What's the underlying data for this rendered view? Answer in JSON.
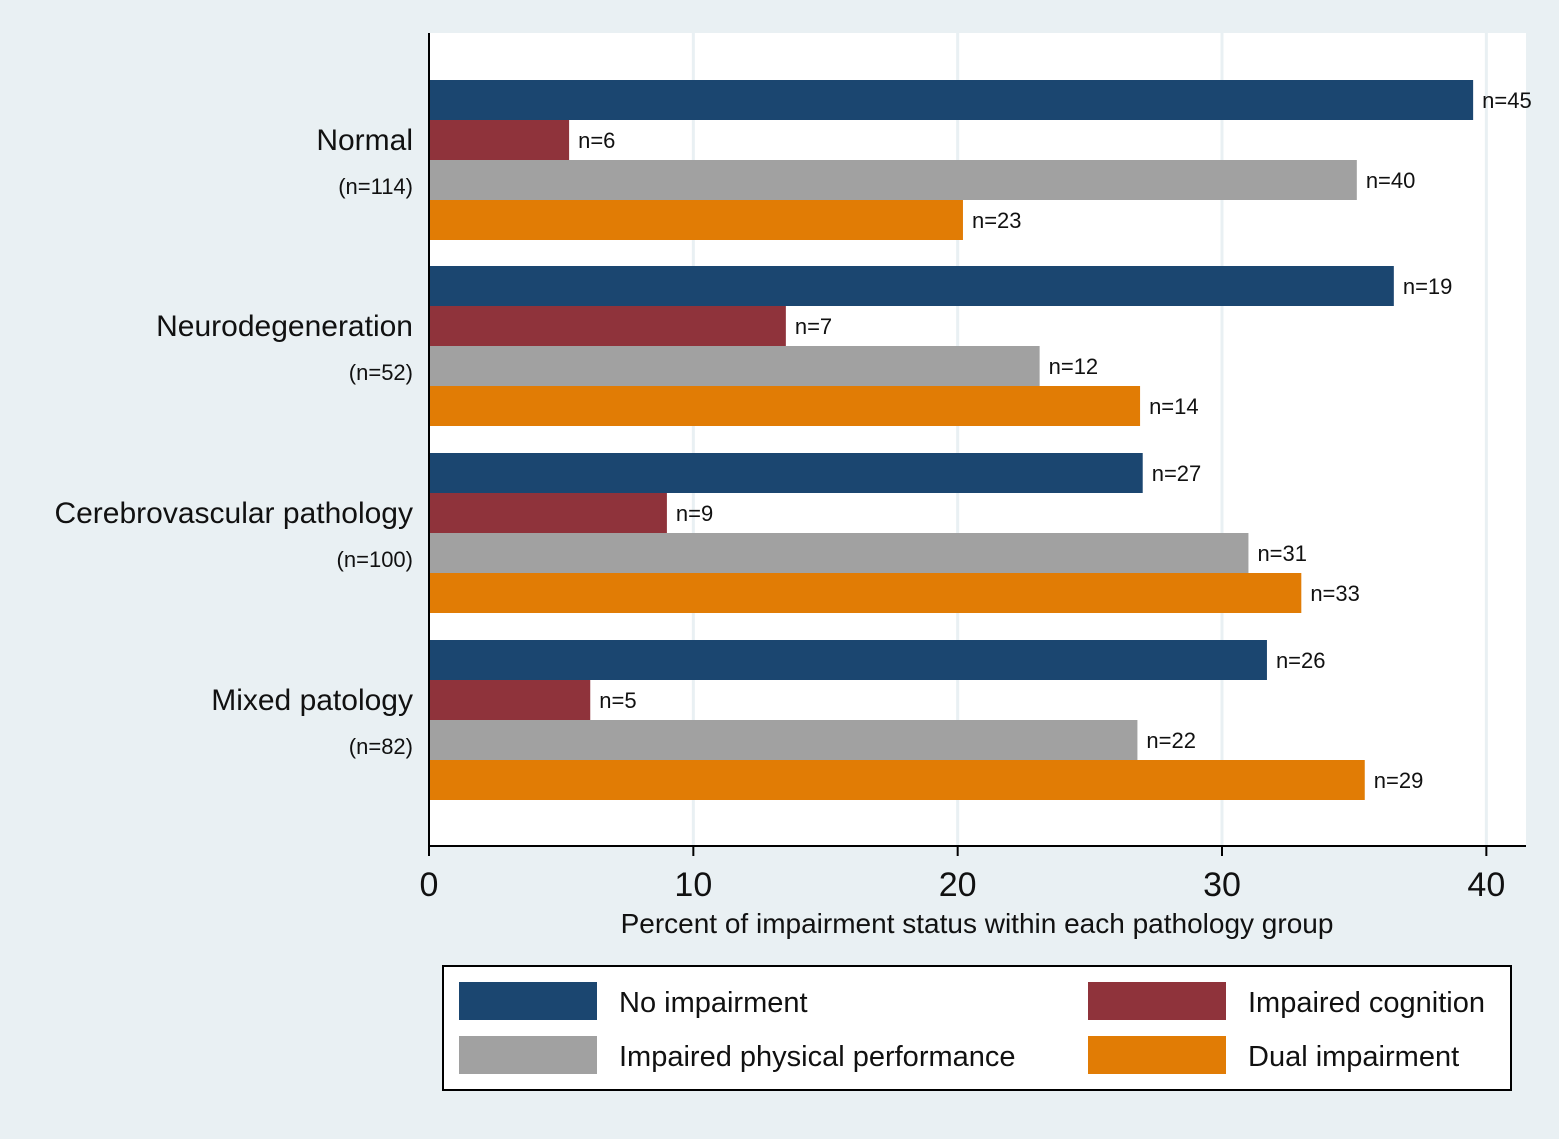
{
  "chart_data": {
    "type": "bar",
    "orientation": "horizontal",
    "xlabel": "Percent of impairment status within each pathology group",
    "xlim": [
      0,
      41.5
    ],
    "xticks": [
      0,
      10,
      20,
      30,
      40
    ],
    "xtick_labels": [
      "0",
      "10",
      "20",
      "30",
      "40"
    ],
    "grid": true,
    "groups": [
      {
        "name": "Normal",
        "n_label": "(n=114)"
      },
      {
        "name": "Neurodegeneration",
        "n_label": "(n=52)"
      },
      {
        "name": "Cerebrovascular pathology",
        "n_label": "(n=100)"
      },
      {
        "name": "Mixed patology",
        "n_label": "(n=82)"
      }
    ],
    "series": [
      {
        "name": "No impairment",
        "color": "#1b4670",
        "values": [
          39.5,
          36.5,
          27.0,
          31.7
        ],
        "labels": [
          "n=45",
          "n=19",
          "n=27",
          "n=26"
        ]
      },
      {
        "name": "Impaired cognition",
        "color": "#8f333b",
        "values": [
          5.3,
          13.5,
          9.0,
          6.1
        ],
        "labels": [
          "n=6",
          "n=7",
          "n=9",
          "n=5"
        ]
      },
      {
        "name": "Impaired physical performance",
        "color": "#a1a1a1",
        "values": [
          35.1,
          23.1,
          31.0,
          26.8
        ],
        "labels": [
          "n=40",
          "n=12",
          "n=31",
          "n=22"
        ]
      },
      {
        "name": "Dual impairment",
        "color": "#e17c05",
        "values": [
          20.2,
          26.9,
          33.0,
          35.4
        ],
        "labels": [
          "n=23",
          "n=14",
          "n=33",
          "n=29"
        ]
      }
    ],
    "legend": {
      "position": "bottom",
      "columns": 2
    }
  }
}
